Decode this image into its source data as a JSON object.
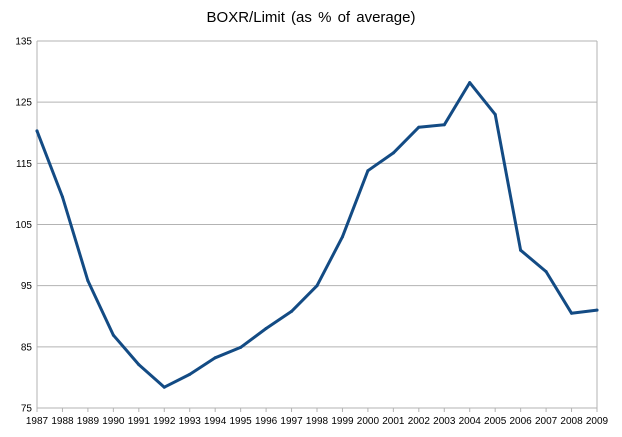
{
  "chart_data": {
    "type": "line",
    "title": "BOXR/Limit  (as  %  of  average)",
    "xlabel": "",
    "ylabel": "",
    "x": [
      "1987",
      "1988",
      "1989",
      "1990",
      "1991",
      "1992",
      "1993",
      "1994",
      "1995",
      "1996",
      "1997",
      "1998",
      "1999",
      "2000",
      "2001",
      "2002",
      "2003",
      "2004",
      "2005",
      "2006",
      "2007",
      "2008",
      "2009"
    ],
    "series": [
      {
        "name": "",
        "values": [
          120.3,
          109.5,
          95.8,
          86.9,
          82.1,
          78.4,
          80.5,
          83.2,
          84.9,
          88.0,
          90.8,
          95.0,
          103.0,
          113.8,
          116.7,
          120.9,
          121.3,
          128.2,
          123.0,
          100.8,
          97.3,
          90.5,
          91.0
        ]
      }
    ],
    "ylim": [
      75,
      135
    ],
    "yticks": [
      75,
      85,
      95,
      105,
      115,
      125,
      135
    ],
    "grid": true,
    "legend": "none",
    "line_color": "#134B84",
    "grid_color": "#B3B3B3"
  }
}
